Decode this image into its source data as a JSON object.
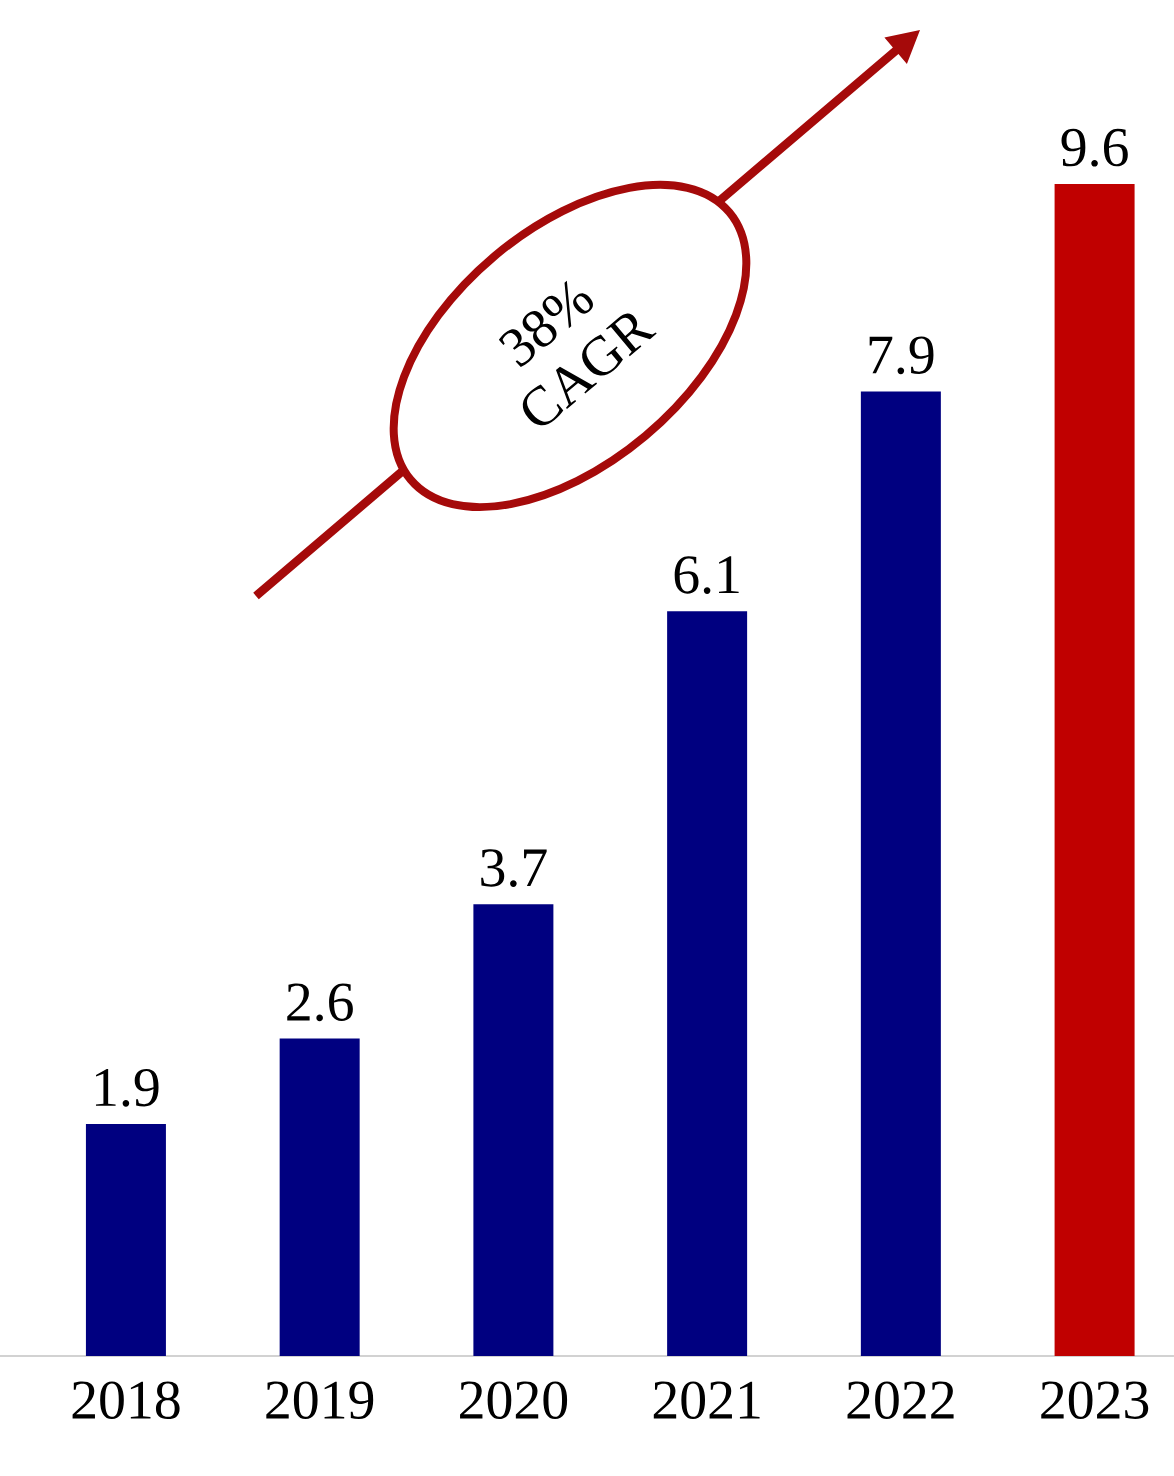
{
  "chart_data": {
    "type": "bar",
    "categories": [
      "2018",
      "2019",
      "2020",
      "2021",
      "2022",
      "2023"
    ],
    "values": [
      1.9,
      2.6,
      3.7,
      6.1,
      7.9,
      9.6
    ],
    "colors": [
      "#000080",
      "#000080",
      "#000080",
      "#000080",
      "#000080",
      "#c00000"
    ],
    "data_labels": true,
    "annotations": [
      "38% CAGR"
    ]
  }
}
